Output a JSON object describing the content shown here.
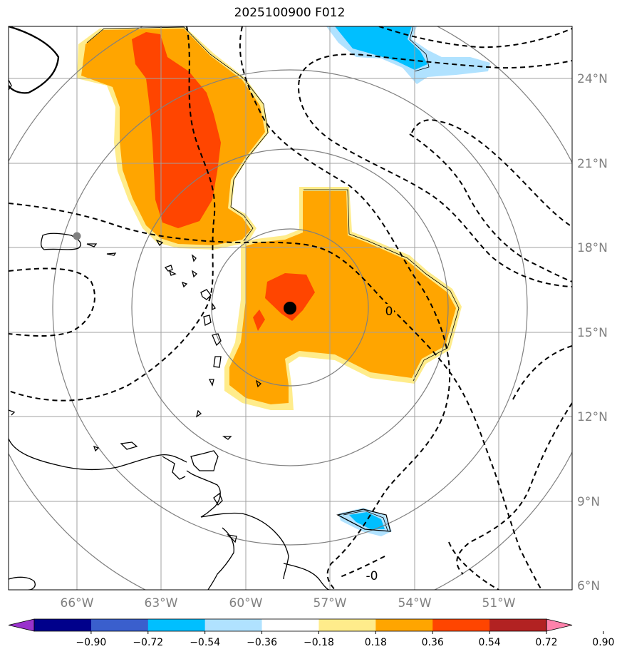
{
  "title": "2025100900 F012",
  "lon_labels": [
    "66°W",
    "63°W",
    "60°W",
    "57°W",
    "54°W",
    "51°W"
  ],
  "lat_labels": [
    "24°N",
    "21°N",
    "18°N",
    "15°N",
    "12°N",
    "9°N",
    "6°N"
  ],
  "lon_values": [
    -66,
    -63,
    -60,
    -57,
    -54,
    -51
  ],
  "lat_values": [
    24,
    21,
    18,
    15,
    12,
    9,
    6
  ],
  "extent": {
    "lon_min": -68.4,
    "lon_max": -48.4,
    "lat_min": 5.8,
    "lat_max": 25.8
  },
  "center_marker": {
    "lon": -58.4,
    "lat": 15.8,
    "color": "#000000"
  },
  "secondary_marker": {
    "lon": -66.0,
    "lat": 18.4,
    "color": "#808080"
  },
  "contour_labels": [
    {
      "text": "0",
      "lon": -54.5,
      "lat": 15.6
    },
    {
      "text": "-0",
      "lon": -55.4,
      "lat": 6.2
    }
  ],
  "colorbar": {
    "tick_labels": [
      "−0.90",
      "−0.72",
      "−0.54",
      "−0.36",
      "−0.18",
      "0.18",
      "0.36",
      "0.54",
      "0.72",
      "0.90"
    ],
    "colors": [
      "#9932cc",
      "#00008b",
      "#3a5fcd",
      "#00bfff",
      "#b0e2ff",
      "#ffffff",
      "#ffec8b",
      "#ffa500",
      "#ff4500",
      "#b22222",
      "#ff82ab"
    ]
  },
  "colors": {
    "grid": "#a0a0a0",
    "range_ring": "#808080",
    "coast": "#000000"
  }
}
